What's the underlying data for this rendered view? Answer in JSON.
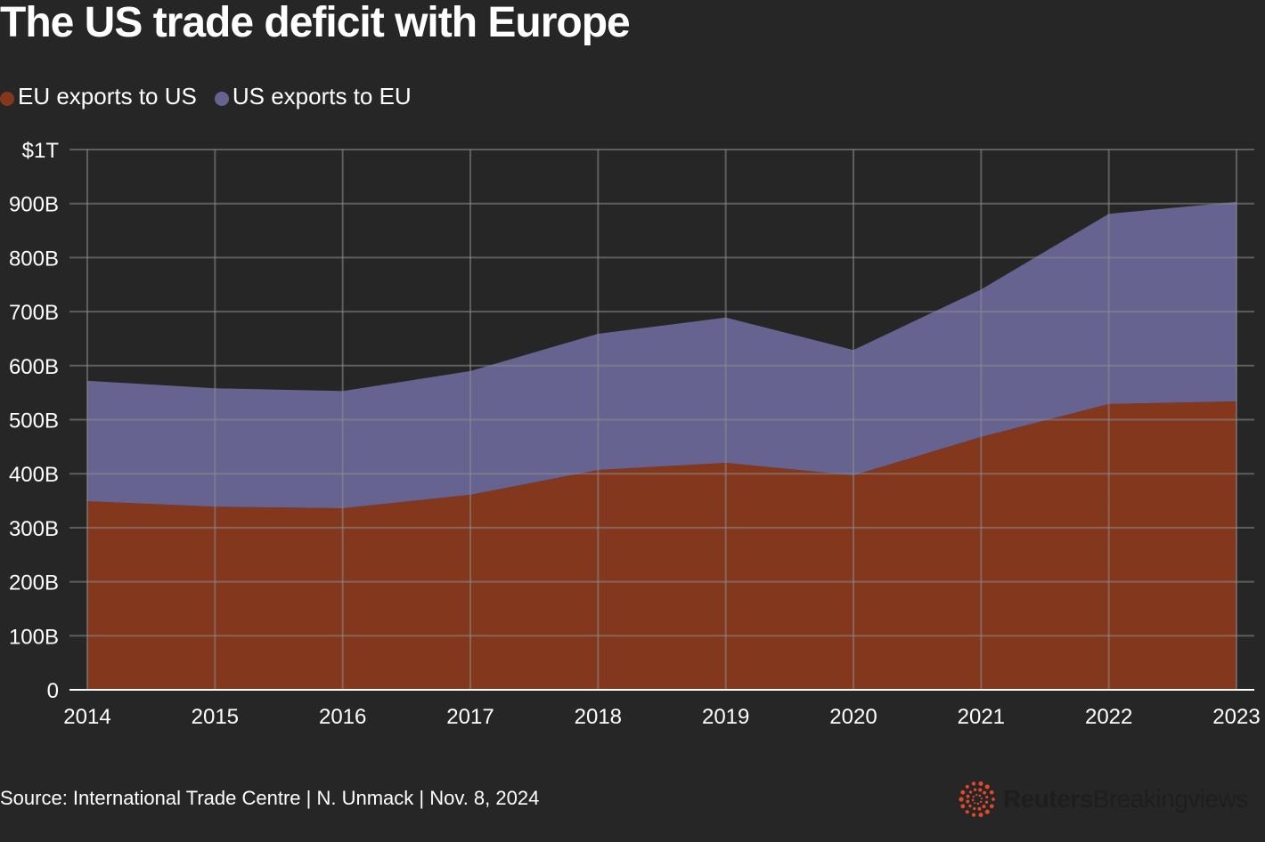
{
  "title": "The US trade deficit with Europe",
  "source": "Source: International Trade Centre | N. Unmack | Nov. 8, 2024",
  "logo": {
    "text_bold": "Reuters",
    "text_light": "Breakingviews",
    "icon": "reuters-dot-ring-logo",
    "color": "#e0482a"
  },
  "chart_data": {
    "type": "area",
    "stacked": true,
    "title": "The US trade deficit with Europe",
    "xlabel": "",
    "ylabel": "",
    "x": [
      2014,
      2015,
      2016,
      2017,
      2018,
      2019,
      2020,
      2021,
      2022,
      2023
    ],
    "x_tick_labels": [
      "2014",
      "2015",
      "2016",
      "2017",
      "2018",
      "2019",
      "2020",
      "2021",
      "2022",
      "2023"
    ],
    "ylim": [
      0,
      1000
    ],
    "y_ticks": [
      0,
      100,
      200,
      300,
      400,
      500,
      600,
      700,
      800,
      900,
      1000
    ],
    "y_tick_labels": [
      "0",
      "100B",
      "200B",
      "300B",
      "400B",
      "500B",
      "600B",
      "700B",
      "800B",
      "900B",
      "$1T"
    ],
    "grid": true,
    "legend_placement": "top-left",
    "series": [
      {
        "name": "EU exports to US",
        "color": "#83371d",
        "values": [
          349,
          339,
          336,
          361,
          407,
          420,
          397,
          468,
          529,
          534
        ]
      },
      {
        "name": "US exports to EU",
        "color": "#676391",
        "values": [
          223,
          219,
          217,
          229,
          252,
          269,
          232,
          273,
          352,
          369
        ]
      }
    ]
  }
}
